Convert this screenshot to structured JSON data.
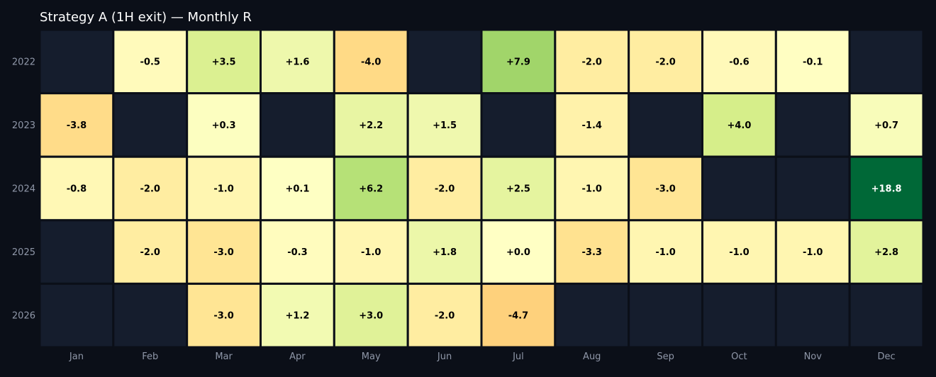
{
  "colors": {
    "background": "#0b0f18",
    "empty_cell": "#151d2d",
    "cell_border": "#0b0f18",
    "tick_label": "#8f97a8",
    "title": "#ffffff"
  },
  "chart_data": {
    "type": "heatmap",
    "title": "Strategy A (1H exit) — Monthly R",
    "xlabel": "",
    "ylabel": "",
    "x": [
      "Jan",
      "Feb",
      "Mar",
      "Apr",
      "May",
      "Jun",
      "Jul",
      "Aug",
      "Sep",
      "Oct",
      "Nov",
      "Dec"
    ],
    "y": [
      "2022",
      "2023",
      "2024",
      "2025",
      "2026"
    ],
    "values": [
      [
        null,
        -0.5,
        3.5,
        1.6,
        -4.0,
        null,
        7.9,
        -2.0,
        -2.0,
        -0.6,
        -0.1,
        null
      ],
      [
        -3.8,
        null,
        0.3,
        null,
        2.2,
        1.5,
        null,
        -1.4,
        null,
        4.0,
        null,
        0.7
      ],
      [
        -0.8,
        -2.0,
        -1.0,
        0.1,
        6.2,
        -2.0,
        2.5,
        -1.0,
        -3.0,
        null,
        null,
        18.8
      ],
      [
        null,
        -2.0,
        -3.0,
        -0.3,
        -1.0,
        1.8,
        0.0,
        -3.3,
        -1.0,
        -1.0,
        -1.0,
        2.8
      ],
      [
        null,
        null,
        -3.0,
        1.2,
        3.0,
        -2.0,
        -4.7,
        null,
        null,
        null,
        null,
        null
      ]
    ],
    "labels": [
      [
        null,
        "-0.5",
        "+3.5",
        "+1.6",
        "-4.0",
        null,
        "+7.9",
        "-2.0",
        "-2.0",
        "-0.6",
        "-0.1",
        null
      ],
      [
        "-3.8",
        null,
        "+0.3",
        null,
        "+2.2",
        "+1.5",
        null,
        "-1.4",
        null,
        "+4.0",
        null,
        "+0.7"
      ],
      [
        "-0.8",
        "-2.0",
        "-1.0",
        "+0.1",
        "+6.2",
        "-2.0",
        "+2.5",
        "-1.0",
        "-3.0",
        null,
        null,
        "+18.8"
      ],
      [
        null,
        "-2.0",
        "-3.0",
        "-0.3",
        "-1.0",
        "+1.8",
        "+0.0",
        "-3.3",
        "-1.0",
        "-1.0",
        "-1.0",
        "+2.8"
      ],
      [
        null,
        null,
        "-3.0",
        "+1.2",
        "+3.0",
        "-2.0",
        "-4.7",
        null,
        null,
        null,
        null,
        null
      ]
    ],
    "colormap": "YlGn (diverging centered at 0)",
    "empty_cells": "dark (no data)",
    "grid": false,
    "legend": "none"
  }
}
